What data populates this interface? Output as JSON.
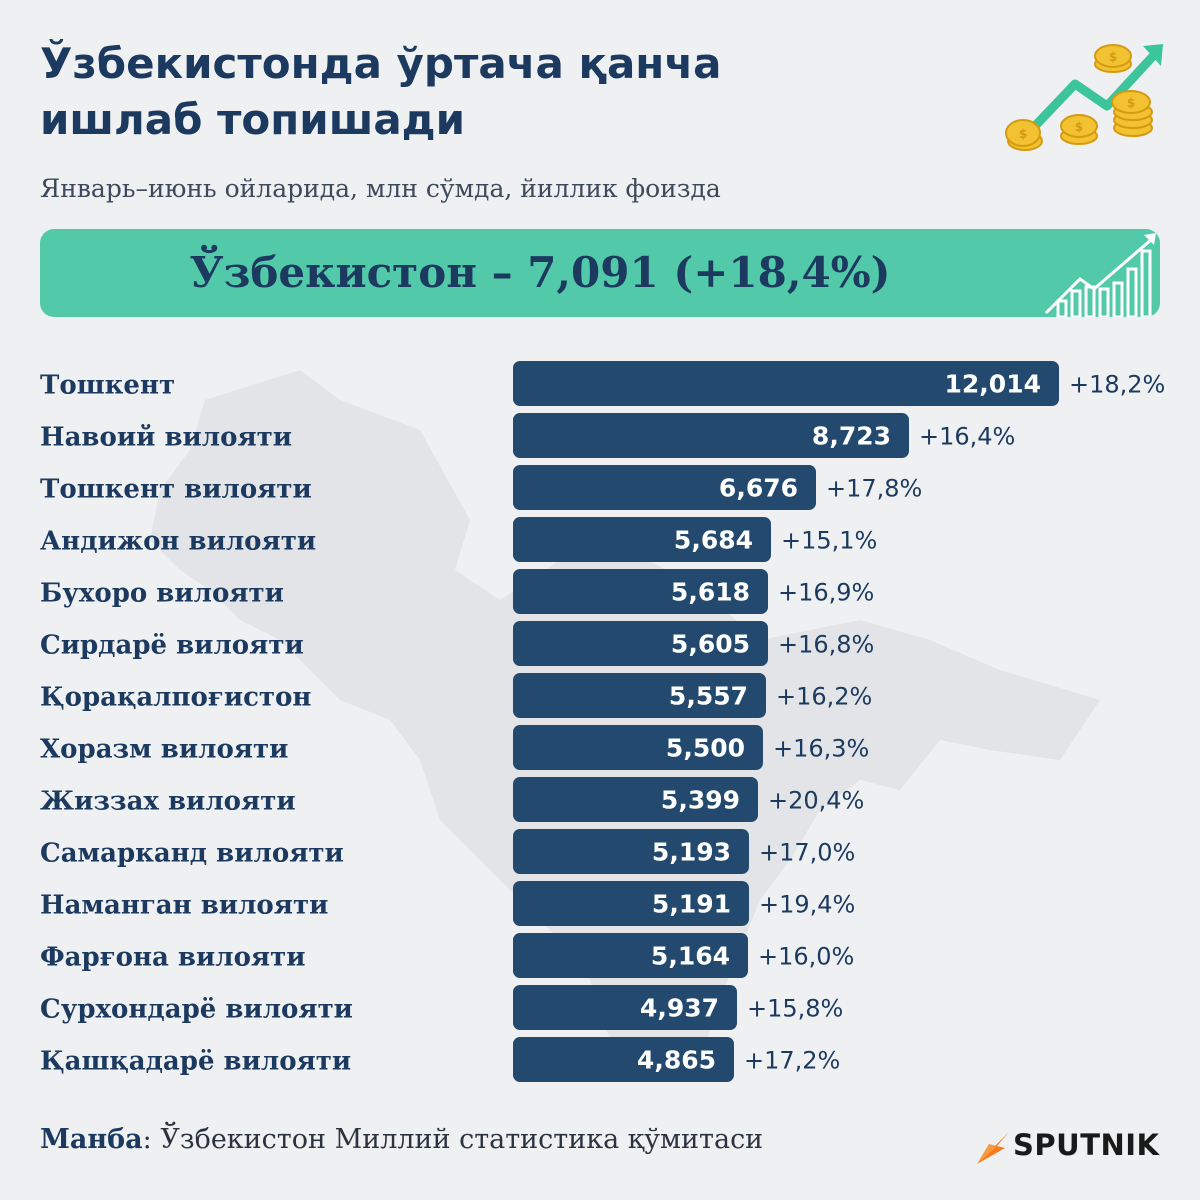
{
  "header": {
    "title_line1": "Ўзбекистонда ўртача қанча",
    "title_line2": "ишлаб топишади",
    "subtitle": "Январь–июнь ойларида, млн сўмда, йиллик фоизда"
  },
  "banner": {
    "text": "Ўзбекистон – 7,091 (+18,4%)"
  },
  "chart_data": {
    "type": "bar",
    "orientation": "horizontal",
    "title": "",
    "xlabel": "",
    "ylabel": "",
    "xlim": [
      0,
      12014
    ],
    "grid": false,
    "categories": [
      "Тошкент",
      "Навоий вилояти",
      "Тошкент вилояти",
      "Андижон вилояти",
      "Бухоро вилояти",
      "Сирдарё вилояти",
      "Қорақалпоғистон",
      "Хоразм вилояти",
      "Жиззах вилояти",
      "Самарканд вилояти",
      "Наманган вилояти",
      "Фарғона вилояти",
      "Сурхондарё вилояти",
      "Қашқадарё вилояти"
    ],
    "values": [
      12014,
      8723,
      6676,
      5684,
      5618,
      5605,
      5557,
      5500,
      5399,
      5193,
      5191,
      5164,
      4937,
      4865
    ],
    "value_labels": [
      "12,014",
      "8,723",
      "6,676",
      "5,684",
      "5,618",
      "5,605",
      "5,557",
      "5,500",
      "5,399",
      "5,193",
      "5,191",
      "5,164",
      "4,937",
      "4,865"
    ],
    "growth_labels": [
      "+18,2%",
      "+16,4%",
      "+17,8%",
      "+15,1%",
      "+16,9%",
      "+16,8%",
      "+16,2%",
      "+16,3%",
      "+20,4%",
      "+17,0%",
      "+19,4%",
      "+16,0%",
      "+15,8%",
      "+17,2%"
    ],
    "colors": {
      "bar": "#234a6e",
      "bar_text": "#ffffff",
      "label": "#1c3a5f"
    }
  },
  "footer": {
    "source_label": "Манба",
    "source_text": ": Ўзбекистон Миллий статистика қўмитаси",
    "logo": "SPUTNIK"
  },
  "icons": {
    "header_decoration": "coins-growth-arrow-icon",
    "banner_decoration": "bar-chart-up-icon",
    "logo_mark": "sputnik-logo-icon"
  },
  "colors": {
    "background": "#eff0f2",
    "banner": "#52c9a8",
    "title": "#1c3a5f",
    "accent_green": "#3cc49a",
    "coin": "#f2c230"
  }
}
